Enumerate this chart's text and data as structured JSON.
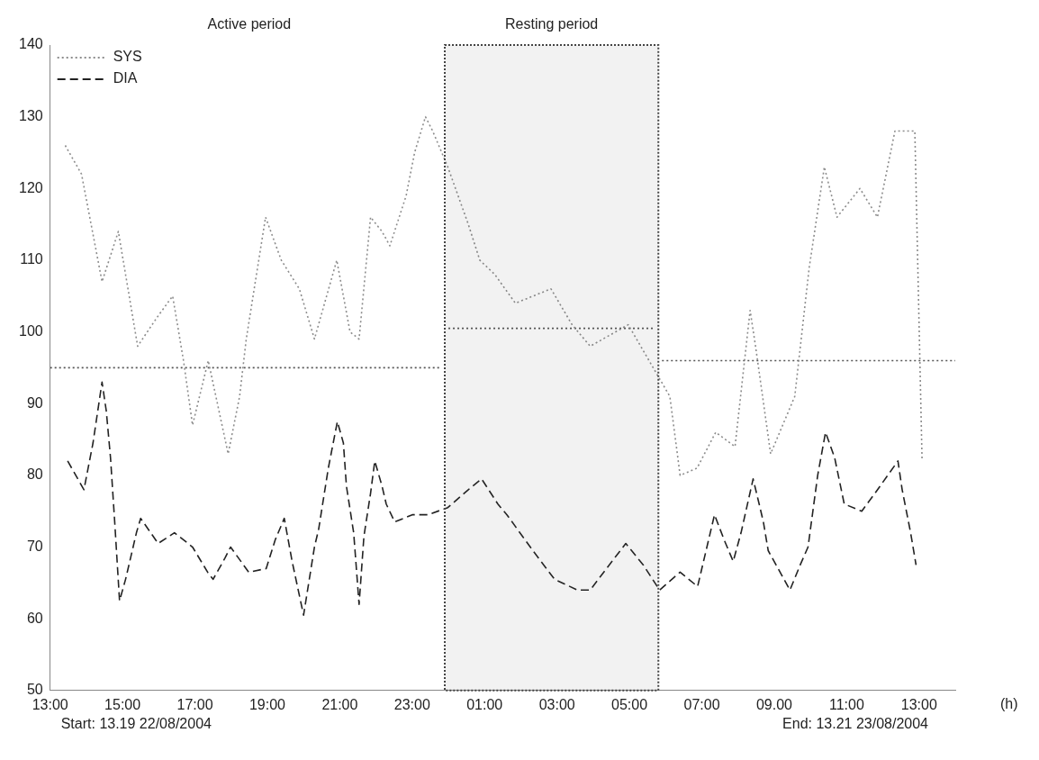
{
  "chart_data": {
    "type": "line",
    "xlabel": "(h)",
    "annotations": [
      "Active period",
      "Start: 13.19 22/08/2004",
      "End: 13.21 23/08/2004"
    ],
    "xlim": [
      "2004-08-22T13:00",
      "2004-08-23T14:00"
    ],
    "ylim": [
      50,
      140
    ],
    "xticks": [
      {
        "value": "2004-08-22T13:00",
        "label": "13:00"
      },
      {
        "value": "2004-08-22T15:00",
        "label": "15:00"
      },
      {
        "value": "2004-08-22T17:00",
        "label": "17:00"
      },
      {
        "value": "2004-08-22T19:00",
        "label": "19:00"
      },
      {
        "value": "2004-08-22T21:00",
        "label": "21:00"
      },
      {
        "value": "2004-08-22T23:00",
        "label": "23:00"
      },
      {
        "value": "2004-08-23T01:00",
        "label": "01:00"
      },
      {
        "value": "2004-08-23T03:00",
        "label": "03:00"
      },
      {
        "value": "2004-08-23T05:00",
        "label": "05:00"
      },
      {
        "value": "2004-08-23T07:00",
        "label": "07:00"
      },
      {
        "value": "2004-08-23T09:00",
        "label": "09.00"
      },
      {
        "value": "2004-08-23T11:00",
        "label": "11:00"
      },
      {
        "value": "2004-08-23T13:00",
        "label": "13:00"
      }
    ],
    "yticks": [
      50,
      60,
      70,
      80,
      90,
      100,
      110,
      120,
      130,
      140
    ],
    "grid": false,
    "legend": "top left",
    "marker": "none",
    "bands": [
      {
        "axis": "x",
        "from": "2004-08-22T23:54",
        "to": "2004-08-23T05:48",
        "label": "Resting period",
        "color": "#444444"
      }
    ],
    "series": [
      {
        "name": "SYS",
        "color": "#8c8c8c",
        "line_style": "dotted",
        "x": [
          "2004-08-22T13:25",
          "2004-08-22T13:52",
          "2004-08-22T14:26",
          "2004-08-22T14:53",
          "2004-08-22T15:25",
          "2004-08-22T15:57",
          "2004-08-22T16:23",
          "2004-08-22T16:41",
          "2004-08-22T16:56",
          "2004-08-22T17:22",
          "2004-08-22T17:55",
          "2004-08-22T18:14",
          "2004-08-22T18:25",
          "2004-08-22T18:57",
          "2004-08-22T19:23",
          "2004-08-22T19:53",
          "2004-08-22T20:18",
          "2004-08-22T20:55",
          "2004-08-22T21:17",
          "2004-08-22T21:32",
          "2004-08-22T21:51",
          "2004-08-22T22:10",
          "2004-08-22T22:23",
          "2004-08-22T22:50",
          "2004-08-22T23:04",
          "2004-08-22T23:22",
          "2004-08-22T23:34",
          "2004-08-22T23:59",
          "2004-08-23T00:33",
          "2004-08-23T00:52",
          "2004-08-23T01:17",
          "2004-08-23T01:51",
          "2004-08-23T02:50",
          "2004-08-23T03:25",
          "2004-08-23T03:55",
          "2004-08-23T04:58",
          "2004-08-23T06:07",
          "2004-08-23T06:24",
          "2004-08-23T06:52",
          "2004-08-23T07:23",
          "2004-08-23T07:55",
          "2004-08-23T08:20",
          "2004-08-23T08:29",
          "2004-08-23T08:54",
          "2004-08-23T09:34",
          "2004-08-23T09:58",
          "2004-08-23T10:23",
          "2004-08-23T10:44",
          "2004-08-23T11:22",
          "2004-08-23T11:51",
          "2004-08-23T12:20",
          "2004-08-23T12:46",
          "2004-08-23T12:53",
          "2004-08-23T13:05"
        ],
        "values": [
          126,
          122,
          107,
          114,
          98,
          102,
          105,
          96,
          87,
          96,
          83,
          91,
          99,
          116,
          110,
          106,
          99,
          110,
          100,
          99,
          116,
          114,
          112,
          119,
          125,
          130,
          128,
          123,
          115,
          110,
          108,
          104,
          106,
          101,
          98,
          101,
          91,
          80,
          81,
          86,
          84,
          103,
          98,
          83,
          91,
          109,
          123,
          116,
          120,
          116,
          128,
          128,
          128,
          82
        ]
      },
      {
        "name": "DIA",
        "color": "#222222",
        "line_style": "dashed",
        "x": [
          "2004-08-22T13:29",
          "2004-08-22T13:56",
          "2004-08-22T14:11",
          "2004-08-22T14:26",
          "2004-08-22T14:33",
          "2004-08-22T14:40",
          "2004-08-22T14:47",
          "2004-08-22T14:55",
          "2004-08-22T15:05",
          "2004-08-22T15:23",
          "2004-08-22T15:30",
          "2004-08-22T15:59",
          "2004-08-22T16:26",
          "2004-08-22T16:56",
          "2004-08-22T17:21",
          "2004-08-22T17:30",
          "2004-08-22T17:50",
          "2004-08-22T17:59",
          "2004-08-22T18:29",
          "2004-08-22T18:58",
          "2004-08-22T19:13",
          "2004-08-22T19:28",
          "2004-08-22T19:41",
          "2004-08-22T20:00",
          "2004-08-22T20:18",
          "2004-08-22T20:25",
          "2004-08-22T20:41",
          "2004-08-22T20:56",
          "2004-08-22T21:06",
          "2004-08-22T21:11",
          "2004-08-22T21:23",
          "2004-08-22T21:32",
          "2004-08-22T21:40",
          "2004-08-22T21:51",
          "2004-08-22T21:58",
          "2004-08-22T22:10",
          "2004-08-22T22:17",
          "2004-08-22T22:31",
          "2004-08-22T23:00",
          "2004-08-22T23:26",
          "2004-08-22T23:59",
          "2004-08-23T00:33",
          "2004-08-23T00:55",
          "2004-08-23T01:22",
          "2004-08-23T01:37",
          "2004-08-23T02:20",
          "2004-08-23T02:38",
          "2004-08-23T02:56",
          "2004-08-23T03:34",
          "2004-08-23T03:55",
          "2004-08-23T04:22",
          "2004-08-23T04:54",
          "2004-08-23T05:23",
          "2004-08-23T05:50",
          "2004-08-23T06:24",
          "2004-08-23T06:53",
          "2004-08-23T07:21",
          "2004-08-23T07:37",
          "2004-08-23T07:52",
          "2004-08-23T08:05",
          "2004-08-23T08:25",
          "2004-08-23T08:35",
          "2004-08-23T08:42",
          "2004-08-23T08:50",
          "2004-08-23T09:26",
          "2004-08-23T09:43",
          "2004-08-23T09:56",
          "2004-08-23T10:12",
          "2004-08-23T10:25",
          "2004-08-23T10:40",
          "2004-08-23T10:56",
          "2004-08-23T11:25",
          "2004-08-23T11:47",
          "2004-08-23T12:25",
          "2004-08-23T12:32",
          "2004-08-23T12:46",
          "2004-08-23T12:55"
        ],
        "values": [
          82,
          78,
          84.5,
          93,
          89,
          82.5,
          73.5,
          62.5,
          65.5,
          72,
          74,
          70.5,
          72,
          70,
          66.5,
          65.5,
          68.5,
          70,
          66.5,
          67,
          71,
          74,
          68,
          60.5,
          70,
          72.5,
          81,
          87.5,
          84.5,
          78.5,
          72,
          62,
          71.5,
          77.5,
          82,
          78.5,
          76,
          73.5,
          74.5,
          74.5,
          75.5,
          78,
          79.5,
          76,
          74.5,
          69.5,
          67.5,
          65.5,
          64,
          64,
          67,
          70.5,
          67.5,
          64,
          66.5,
          64.5,
          74.5,
          71,
          68,
          72,
          79.5,
          76,
          73.5,
          69.5,
          64,
          67.5,
          70,
          80,
          86,
          82.5,
          76,
          75,
          77.5,
          82,
          78,
          72,
          67.5
        ]
      },
      {
        "color": "#555555",
        "line_style": "dotted",
        "x": [
          "2004-08-22T13:00",
          "2004-08-22T23:48"
        ],
        "values": [
          95,
          95
        ]
      },
      {
        "color": "#555555",
        "line_style": "dotted",
        "x": [
          "2004-08-23T00:00",
          "2004-08-23T05:42"
        ],
        "values": [
          100.5,
          100.5
        ]
      },
      {
        "color": "#555555",
        "line_style": "dotted",
        "x": [
          "2004-08-23T05:54",
          "2004-08-23T14:00"
        ],
        "values": [
          96,
          96
        ]
      }
    ]
  }
}
